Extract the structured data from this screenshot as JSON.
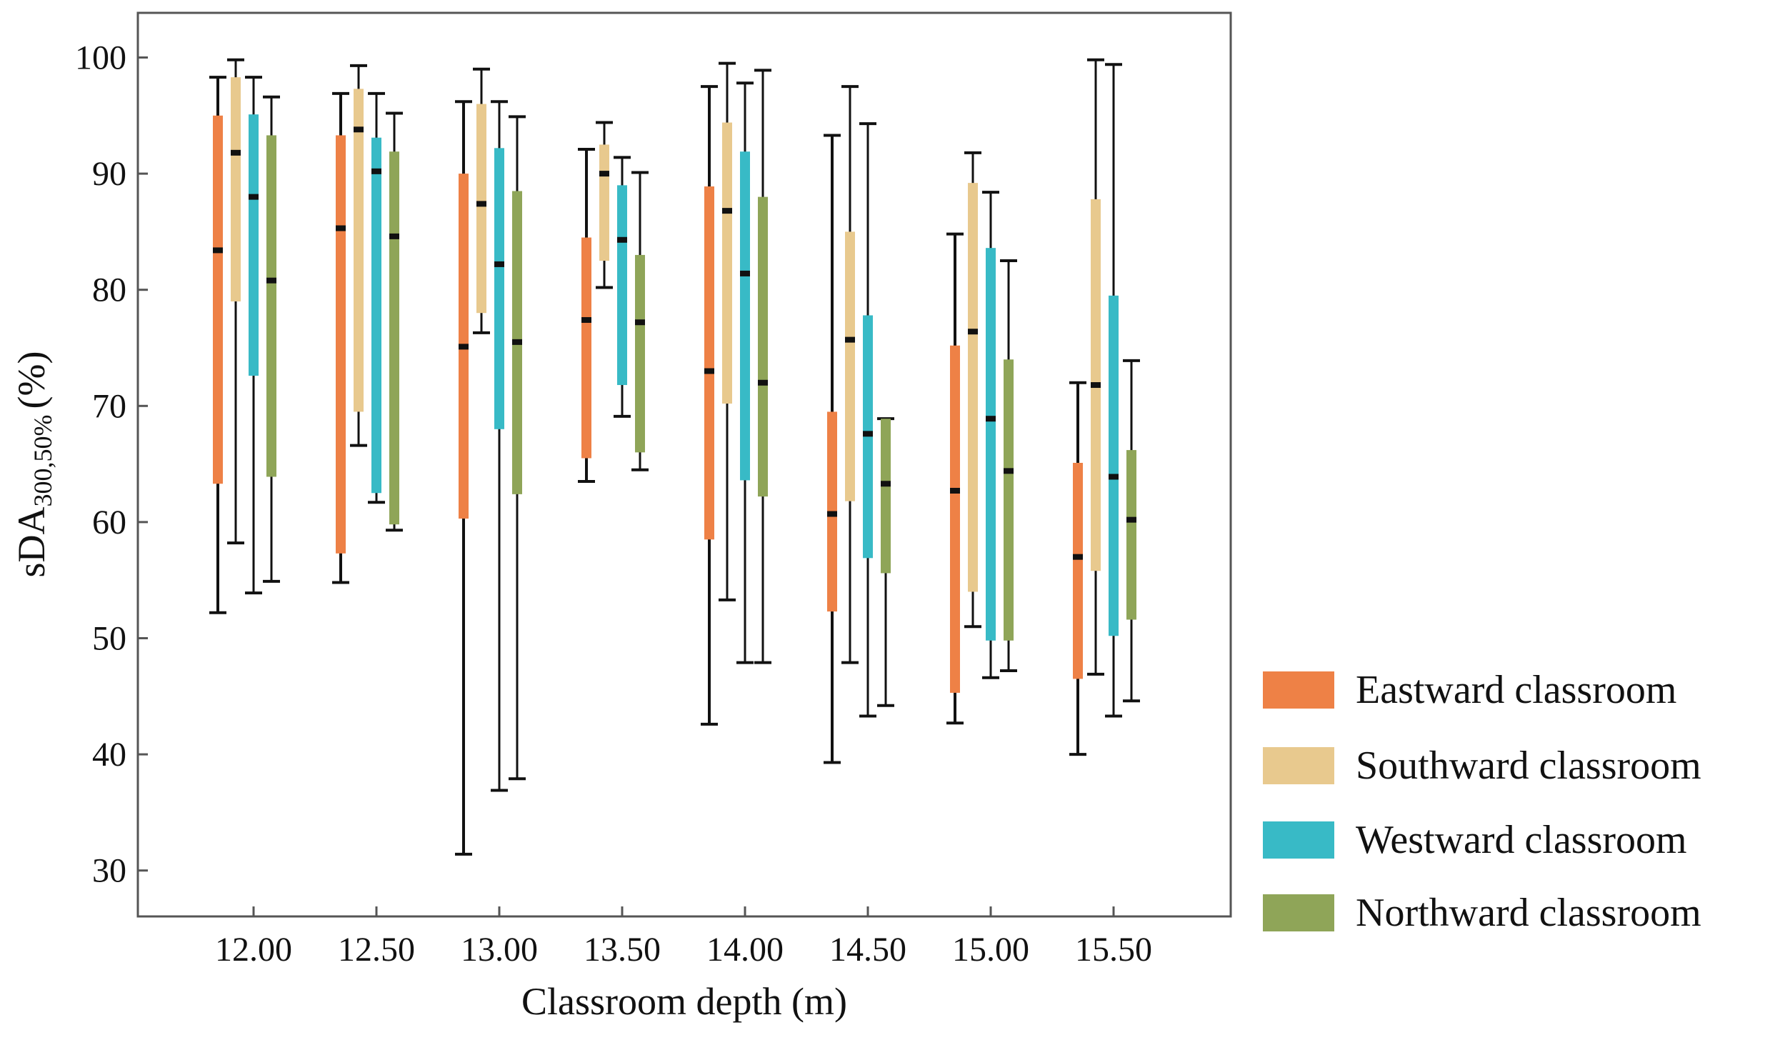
{
  "chart_data": {
    "type": "box",
    "xlabel": "Classroom depth (m)",
    "ylabel_main": "sDA",
    "ylabel_sub": "300,50%",
    "ylabel_unit": "(%)",
    "ylim": [
      26,
      104
    ],
    "yticks": [
      30,
      40,
      50,
      60,
      70,
      80,
      90,
      100
    ],
    "categories": [
      "12.00",
      "12.50",
      "13.00",
      "13.50",
      "14.00",
      "14.50",
      "15.00",
      "15.50"
    ],
    "series": [
      {
        "name": "Eastward classroom",
        "color": "#ee8146",
        "boxes": [
          {
            "min": 52.2,
            "q1": 63.3,
            "median": 83.4,
            "q3": 95.0,
            "max": 98.3
          },
          {
            "min": 54.8,
            "q1": 57.3,
            "median": 85.3,
            "q3": 93.3,
            "max": 96.9
          },
          {
            "min": 31.4,
            "q1": 60.3,
            "median": 75.1,
            "q3": 90.0,
            "max": 96.2
          },
          {
            "min": 63.5,
            "q1": 65.5,
            "median": 77.4,
            "q3": 84.5,
            "max": 92.1
          },
          {
            "min": 42.6,
            "q1": 58.5,
            "median": 73.0,
            "q3": 88.9,
            "max": 97.5
          },
          {
            "min": 39.3,
            "q1": 52.3,
            "median": 60.7,
            "q3": 69.5,
            "max": 93.3
          },
          {
            "min": 42.7,
            "q1": 45.3,
            "median": 62.7,
            "q3": 75.2,
            "max": 84.8
          },
          {
            "min": 40.0,
            "q1": 46.5,
            "median": 57.0,
            "q3": 65.1,
            "max": 72.0
          }
        ]
      },
      {
        "name": "Southward classroom",
        "color": "#e8c98e",
        "boxes": [
          {
            "min": 58.2,
            "q1": 79.0,
            "median": 91.8,
            "q3": 98.3,
            "max": 99.8
          },
          {
            "min": 66.6,
            "q1": 69.5,
            "median": 93.8,
            "q3": 97.3,
            "max": 99.3
          },
          {
            "min": 76.3,
            "q1": 78.0,
            "median": 87.4,
            "q3": 96.0,
            "max": 99.0
          },
          {
            "min": 80.2,
            "q1": 82.5,
            "median": 90.0,
            "q3": 92.5,
            "max": 94.4
          },
          {
            "min": 53.3,
            "q1": 70.2,
            "median": 86.8,
            "q3": 94.4,
            "max": 99.5
          },
          {
            "min": 47.9,
            "q1": 61.8,
            "median": 75.7,
            "q3": 85.0,
            "max": 97.5
          },
          {
            "min": 51.0,
            "q1": 54.0,
            "median": 76.4,
            "q3": 89.2,
            "max": 91.8
          },
          {
            "min": 46.9,
            "q1": 55.8,
            "median": 71.8,
            "q3": 87.8,
            "max": 99.8
          }
        ]
      },
      {
        "name": "Westward classroom",
        "color": "#38bac6",
        "boxes": [
          {
            "min": 53.9,
            "q1": 72.6,
            "median": 88.0,
            "q3": 95.1,
            "max": 98.3
          },
          {
            "min": 61.7,
            "q1": 62.5,
            "median": 90.2,
            "q3": 93.1,
            "max": 96.9
          },
          {
            "min": 36.9,
            "q1": 68.0,
            "median": 82.2,
            "q3": 92.2,
            "max": 96.2
          },
          {
            "min": 69.1,
            "q1": 71.8,
            "median": 84.3,
            "q3": 89.0,
            "max": 91.4
          },
          {
            "min": 47.9,
            "q1": 63.6,
            "median": 81.4,
            "q3": 91.9,
            "max": 97.8
          },
          {
            "min": 43.3,
            "q1": 56.9,
            "median": 67.6,
            "q3": 77.8,
            "max": 94.3
          },
          {
            "min": 46.6,
            "q1": 49.8,
            "median": 68.9,
            "q3": 83.6,
            "max": 88.4
          },
          {
            "min": 43.3,
            "q1": 50.2,
            "median": 63.9,
            "q3": 79.5,
            "max": 99.4
          }
        ]
      },
      {
        "name": "Northward classroom",
        "color": "#8fa558",
        "boxes": [
          {
            "min": 54.9,
            "q1": 63.9,
            "median": 80.8,
            "q3": 93.3,
            "max": 96.6
          },
          {
            "min": 59.3,
            "q1": 59.8,
            "median": 84.6,
            "q3": 91.9,
            "max": 95.2
          },
          {
            "min": 37.9,
            "q1": 62.4,
            "median": 75.5,
            "q3": 88.5,
            "max": 94.9
          },
          {
            "min": 64.5,
            "q1": 66.0,
            "median": 77.2,
            "q3": 83.0,
            "max": 90.1
          },
          {
            "min": 47.9,
            "q1": 62.2,
            "median": 72.0,
            "q3": 88.0,
            "max": 98.9
          },
          {
            "min": 44.2,
            "q1": 55.6,
            "median": 63.3,
            "q3": 68.9,
            "max": 68.9
          },
          {
            "min": 47.2,
            "q1": 49.8,
            "median": 64.4,
            "q3": 74.0,
            "max": 82.5
          },
          {
            "min": 44.6,
            "q1": 51.6,
            "median": 60.2,
            "q3": 66.2,
            "max": 73.9
          }
        ]
      }
    ],
    "legend_position": "right",
    "grid": false
  }
}
